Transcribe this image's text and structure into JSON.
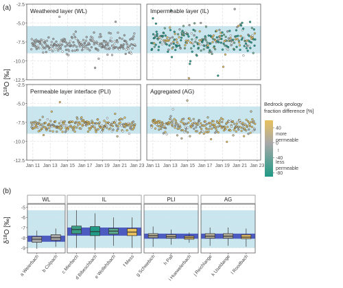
{
  "panel_labels": {
    "a": "(a)",
    "b": "(b)"
  },
  "colors": {
    "band": "#c9e6ef",
    "panel_bg": "#ffffff",
    "frame": "#555555",
    "grid": "#e6e6e6",
    "strip_bg": "#ffffff",
    "iqr_band": "#4b5bbf",
    "median": "#2b2b2b",
    "gradient_high": "#e8c15e",
    "gradient_mid": "#a8a8a8",
    "gradient_low": "#1f9a86"
  },
  "chart_data": [
    {
      "type": "scatter",
      "ylabel": "δ18O [‰]",
      "ylim": [
        -12.5,
        -2.5
      ],
      "yticks": [
        -2.5,
        -5.0,
        -7.5,
        -10.0,
        -12.5
      ],
      "ytick_labels": [
        "-2.5",
        "-5.0",
        "-7.5",
        "-10.0",
        "-12.5"
      ],
      "xlim": [
        2010.3,
        2023.4
      ],
      "xticks": [
        2011,
        2013,
        2015,
        2017,
        2019,
        2021,
        2023
      ],
      "xtick_labels": [
        "Jan 11",
        "Jan 13",
        "Jan 15",
        "Jan 17",
        "Jan 19",
        "Jan 21",
        "Jan 23"
      ],
      "band_range": [
        -9.0,
        -5.4
      ],
      "panels": [
        {
          "title": "Weathered layer (WL)",
          "mean": -7.9,
          "spread": 0.55,
          "scale": "gray",
          "x_start": 2010.8,
          "x_end": 2022.8
        },
        {
          "title": "Impermeable layer (IL)",
          "mean": -7.4,
          "spread": 1.0,
          "scale": "mixed",
          "x_start": 2010.8,
          "x_end": 2022.8
        },
        {
          "title": "Permeable layer interface (PLI)",
          "mean": -7.9,
          "spread": 0.45,
          "scale": "tan",
          "x_start": 2010.8,
          "x_end": 2022.8
        },
        {
          "title": "Aggregated (AG)",
          "mean": -7.9,
          "spread": 0.55,
          "scale": "tan",
          "x_start": 2010.8,
          "x_end": 2022.8
        }
      ],
      "legend": {
        "title_lines": [
          "Bedrock geology",
          "fraction difference [%]"
        ],
        "ticks": [
          40,
          0,
          -40,
          -80
        ],
        "tick_labels": [
          "40",
          "0",
          "-40",
          "-80"
        ],
        "range": [
          -90,
          60
        ],
        "more_label": [
          "more",
          "permeable"
        ],
        "arrow": "↕",
        "less_label": [
          "less",
          "permeable"
        ],
        "placement": "right"
      }
    },
    {
      "type": "box",
      "ylabel": "δ18O [‰]",
      "ylim": [
        -9.5,
        -4.7
      ],
      "yticks": [
        -5,
        -6,
        -7,
        -8,
        -9
      ],
      "ytick_labels": [
        "-5",
        "-6",
        "-7",
        "-8",
        "-9"
      ],
      "band_range": [
        -9.0,
        -5.3
      ],
      "groups": [
        {
          "name": "WL",
          "iqr_band": [
            -8.4,
            -7.8
          ],
          "boxes": [
            {
              "label": "a Weierbach",
              "whislo": -9.1,
              "q1": -8.45,
              "med": -8.15,
              "q3": -7.9,
              "whishi": -7.3,
              "color": "#a8a8a8"
            },
            {
              "label": "b Colpach",
              "whislo": -8.9,
              "q1": -8.25,
              "med": -8.0,
              "q3": -7.7,
              "whishi": -7.1,
              "color": "#a8a8a8"
            }
          ]
        },
        {
          "name": "IL",
          "iqr_band": [
            -7.8,
            -7.0
          ],
          "boxes": [
            {
              "label": "c Mierbech",
              "whislo": -9.0,
              "q1": -7.6,
              "med": -7.2,
              "q3": -6.85,
              "whishi": -5.3,
              "color": "#3a9e85"
            },
            {
              "label": "d Bibeschbach",
              "whislo": -9.2,
              "q1": -7.8,
              "med": -7.4,
              "q3": -6.9,
              "whishi": -5.6,
              "color": "#1f9a86"
            },
            {
              "label": "e Wollefsbach",
              "whislo": -8.8,
              "q1": -7.65,
              "med": -7.35,
              "q3": -7.1,
              "whishi": -6.0,
              "color": "#5aa88e"
            },
            {
              "label": "f Mess",
              "whislo": -9.0,
              "q1": -7.8,
              "med": -7.45,
              "q3": -7.1,
              "whishi": -6.0,
              "color": "#e8c15e"
            }
          ]
        },
        {
          "name": "PLI",
          "iqr_band": [
            -8.1,
            -7.6
          ],
          "boxes": [
            {
              "label": "g Schwebich",
              "whislo": -8.9,
              "q1": -8.0,
              "med": -7.8,
              "q3": -7.6,
              "whishi": -6.9,
              "color": "#b3ad98"
            },
            {
              "label": "h Pall",
              "whislo": -8.7,
              "q1": -8.05,
              "med": -7.9,
              "q3": -7.7,
              "whishi": -7.2,
              "color": "#b6ae95"
            },
            {
              "label": "i Huewelerbach",
              "whislo": -8.5,
              "q1": -8.15,
              "med": -8.0,
              "q3": -7.85,
              "whishi": -7.5,
              "color": "#e0bd66"
            }
          ]
        },
        {
          "name": "AG",
          "iqr_band": [
            -8.1,
            -7.6
          ],
          "boxes": [
            {
              "label": "j Reichlange",
              "whislo": -8.8,
              "q1": -8.05,
              "med": -7.85,
              "q3": -7.6,
              "whishi": -7.0,
              "color": "#b3ad98"
            },
            {
              "label": "k Useldange",
              "whislo": -8.8,
              "q1": -8.05,
              "med": -7.85,
              "q3": -7.6,
              "whishi": -7.0,
              "color": "#b0ab99"
            },
            {
              "label": "l Roodbach",
              "whislo": -8.9,
              "q1": -8.1,
              "med": -7.95,
              "q3": -7.7,
              "whishi": -7.1,
              "color": "#d9b868"
            }
          ]
        }
      ]
    }
  ]
}
